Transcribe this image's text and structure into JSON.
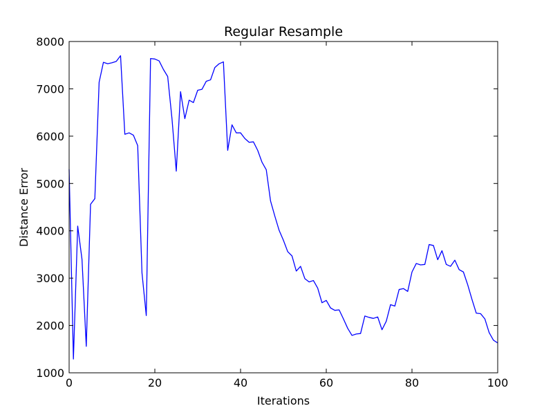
{
  "chart_data": {
    "type": "line",
    "title": "Regular Resample",
    "xlabel": "Iterations",
    "ylabel": "Distance Error",
    "xlim": [
      0,
      100
    ],
    "ylim": [
      1000,
      8000
    ],
    "xticks": [
      0,
      20,
      40,
      60,
      80,
      100
    ],
    "yticks": [
      1000,
      2000,
      3000,
      4000,
      5000,
      6000,
      7000,
      8000
    ],
    "grid": false,
    "legend": "none",
    "line_color": "#0000ff",
    "series": [
      {
        "x": [
          0,
          1,
          2,
          3,
          4,
          5,
          6,
          7,
          8,
          9,
          10,
          11,
          12,
          13,
          14,
          15,
          16,
          17,
          18,
          19,
          20,
          21,
          22,
          23,
          24,
          25,
          26,
          27,
          28,
          29,
          30,
          31,
          32,
          33,
          34,
          35,
          36,
          37,
          38,
          39,
          40,
          41,
          42,
          43,
          44,
          45,
          46,
          47,
          48,
          49,
          50,
          51,
          52,
          53,
          54,
          55,
          56,
          57,
          58,
          59,
          60,
          61,
          62,
          63,
          64,
          65,
          66,
          67,
          68,
          69,
          70,
          71,
          72,
          73,
          74,
          75,
          76,
          77,
          78,
          79,
          80,
          81,
          82,
          83,
          84,
          85,
          86,
          87,
          88,
          89,
          90,
          91,
          92,
          93,
          94,
          95,
          96,
          97,
          98,
          99,
          100
        ],
        "values": [
          5300,
          1290,
          4100,
          3400,
          1560,
          4560,
          4680,
          7140,
          7560,
          7530,
          7550,
          7580,
          7700,
          6040,
          6070,
          6020,
          5800,
          3110,
          2210,
          7640,
          7630,
          7590,
          7410,
          7260,
          6370,
          5260,
          6940,
          6370,
          6760,
          6710,
          6970,
          6990,
          7160,
          7190,
          7450,
          7530,
          7570,
          5700,
          6240,
          6070,
          6070,
          5950,
          5870,
          5880,
          5700,
          5450,
          5290,
          4630,
          4310,
          4010,
          3800,
          3560,
          3470,
          3150,
          3250,
          2990,
          2920,
          2950,
          2790,
          2480,
          2530,
          2370,
          2320,
          2330,
          2140,
          1940,
          1790,
          1820,
          1830,
          2200,
          2170,
          2150,
          2180,
          1910,
          2090,
          2440,
          2410,
          2760,
          2780,
          2720,
          3130,
          3310,
          3280,
          3290,
          3710,
          3690,
          3390,
          3580,
          3290,
          3250,
          3380,
          3180,
          3130,
          2860,
          2550,
          2260,
          2250,
          2140,
          1850,
          1690,
          1630
        ]
      }
    ]
  }
}
